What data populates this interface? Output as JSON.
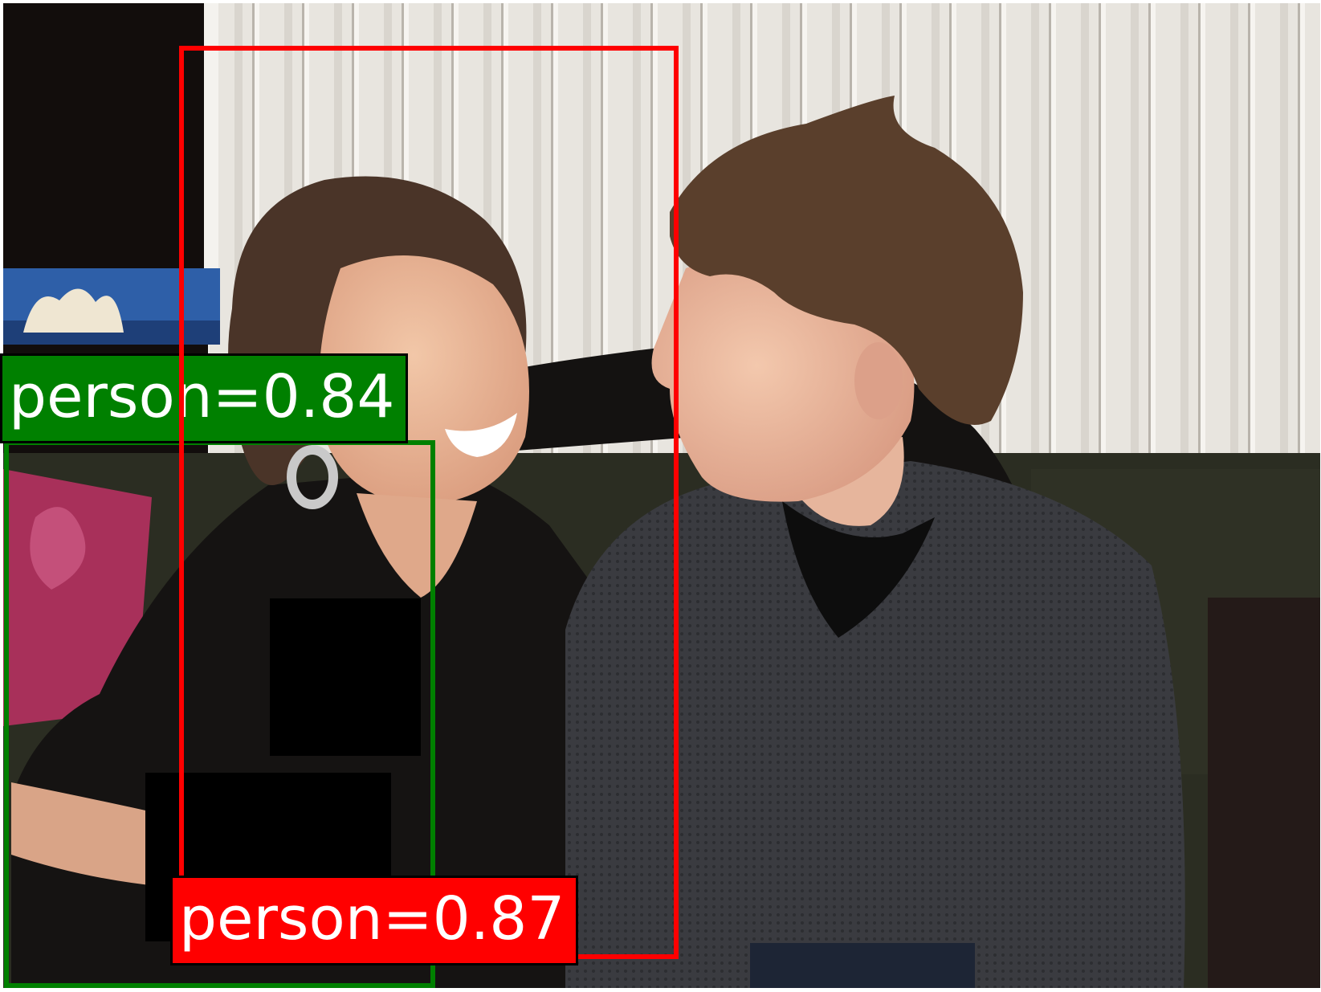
{
  "image": {
    "description_colors": {
      "wall": "#e6e2dc",
      "sofa": "#2b2d22",
      "cushion": "#a8305a"
    }
  },
  "detections": [
    {
      "label": "person=0.84",
      "color": "#008000"
    },
    {
      "label": "person=0.87",
      "color": "#ff0000"
    }
  ]
}
